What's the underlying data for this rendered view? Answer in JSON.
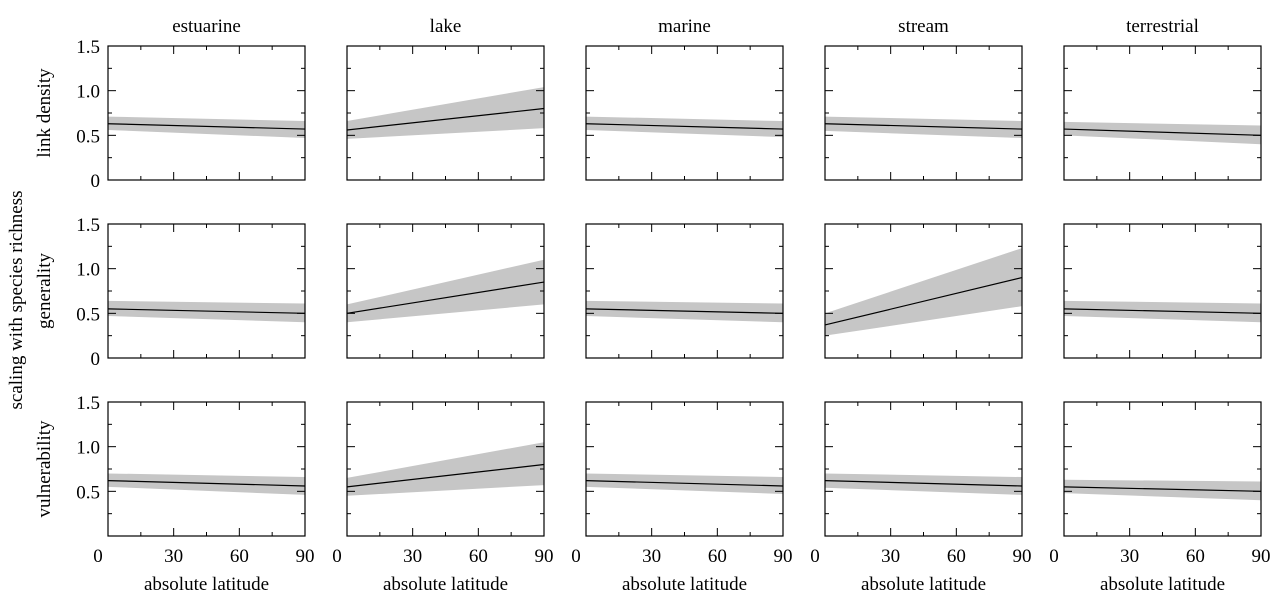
{
  "chart_data": {
    "type": "line",
    "y_supertitle": "scaling with species richness",
    "columns": [
      "estuarine",
      "lake",
      "marine",
      "stream",
      "terrestrial"
    ],
    "rows": [
      "link density",
      "generality",
      "vulnerability"
    ],
    "xlabel": "absolute latitude",
    "xlim": [
      0,
      90
    ],
    "xticks": [
      0,
      30,
      60,
      90
    ],
    "xtick_labels": [
      "0",
      "30",
      "60",
      "90"
    ],
    "ylim": [
      0,
      1.5
    ],
    "yticks": [
      0,
      0.5,
      1.0,
      1.5
    ],
    "ytick_labels": [
      "0",
      "0.5",
      "1.0",
      "1.5"
    ],
    "panels": [
      {
        "row": "link density",
        "column": "estuarine",
        "line": [
          [
            0,
            0.63
          ],
          [
            90,
            0.57
          ]
        ],
        "ci_lower": [
          [
            0,
            0.56
          ],
          [
            90,
            0.47
          ]
        ],
        "ci_upper": [
          [
            0,
            0.71
          ],
          [
            90,
            0.66
          ]
        ]
      },
      {
        "row": "link density",
        "column": "lake",
        "line": [
          [
            0,
            0.56
          ],
          [
            90,
            0.8
          ]
        ],
        "ci_lower": [
          [
            0,
            0.46
          ],
          [
            90,
            0.58
          ]
        ],
        "ci_upper": [
          [
            0,
            0.66
          ],
          [
            90,
            1.04
          ]
        ]
      },
      {
        "row": "link density",
        "column": "marine",
        "line": [
          [
            0,
            0.63
          ],
          [
            90,
            0.57
          ]
        ],
        "ci_lower": [
          [
            0,
            0.56
          ],
          [
            90,
            0.48
          ]
        ],
        "ci_upper": [
          [
            0,
            0.71
          ],
          [
            90,
            0.66
          ]
        ]
      },
      {
        "row": "link density",
        "column": "stream",
        "line": [
          [
            0,
            0.63
          ],
          [
            90,
            0.57
          ]
        ],
        "ci_lower": [
          [
            0,
            0.55
          ],
          [
            90,
            0.47
          ]
        ],
        "ci_upper": [
          [
            0,
            0.71
          ],
          [
            90,
            0.66
          ]
        ]
      },
      {
        "row": "link density",
        "column": "terrestrial",
        "line": [
          [
            0,
            0.57
          ],
          [
            90,
            0.5
          ]
        ],
        "ci_lower": [
          [
            0,
            0.5
          ],
          [
            90,
            0.4
          ]
        ],
        "ci_upper": [
          [
            0,
            0.65
          ],
          [
            90,
            0.61
          ]
        ]
      },
      {
        "row": "generality",
        "column": "estuarine",
        "line": [
          [
            0,
            0.55
          ],
          [
            90,
            0.5
          ]
        ],
        "ci_lower": [
          [
            0,
            0.47
          ],
          [
            90,
            0.4
          ]
        ],
        "ci_upper": [
          [
            0,
            0.64
          ],
          [
            90,
            0.61
          ]
        ]
      },
      {
        "row": "generality",
        "column": "lake",
        "line": [
          [
            0,
            0.5
          ],
          [
            90,
            0.85
          ]
        ],
        "ci_lower": [
          [
            0,
            0.4
          ],
          [
            90,
            0.6
          ]
        ],
        "ci_upper": [
          [
            0,
            0.6
          ],
          [
            90,
            1.1
          ]
        ]
      },
      {
        "row": "generality",
        "column": "marine",
        "line": [
          [
            0,
            0.55
          ],
          [
            90,
            0.5
          ]
        ],
        "ci_lower": [
          [
            0,
            0.47
          ],
          [
            90,
            0.4
          ]
        ],
        "ci_upper": [
          [
            0,
            0.64
          ],
          [
            90,
            0.61
          ]
        ]
      },
      {
        "row": "generality",
        "column": "stream",
        "line": [
          [
            0,
            0.37
          ],
          [
            90,
            0.9
          ]
        ],
        "ci_lower": [
          [
            0,
            0.25
          ],
          [
            90,
            0.58
          ]
        ],
        "ci_upper": [
          [
            0,
            0.5
          ],
          [
            90,
            1.23
          ]
        ]
      },
      {
        "row": "generality",
        "column": "terrestrial",
        "line": [
          [
            0,
            0.55
          ],
          [
            90,
            0.5
          ]
        ],
        "ci_lower": [
          [
            0,
            0.47
          ],
          [
            90,
            0.4
          ]
        ],
        "ci_upper": [
          [
            0,
            0.64
          ],
          [
            90,
            0.61
          ]
        ]
      },
      {
        "row": "vulnerability",
        "column": "estuarine",
        "line": [
          [
            0,
            0.62
          ],
          [
            90,
            0.56
          ]
        ],
        "ci_lower": [
          [
            0,
            0.55
          ],
          [
            90,
            0.46
          ]
        ],
        "ci_upper": [
          [
            0,
            0.7
          ],
          [
            90,
            0.66
          ]
        ]
      },
      {
        "row": "vulnerability",
        "column": "lake",
        "line": [
          [
            0,
            0.55
          ],
          [
            90,
            0.8
          ]
        ],
        "ci_lower": [
          [
            0,
            0.45
          ],
          [
            90,
            0.57
          ]
        ],
        "ci_upper": [
          [
            0,
            0.65
          ],
          [
            90,
            1.05
          ]
        ]
      },
      {
        "row": "vulnerability",
        "column": "marine",
        "line": [
          [
            0,
            0.62
          ],
          [
            90,
            0.56
          ]
        ],
        "ci_lower": [
          [
            0,
            0.55
          ],
          [
            90,
            0.47
          ]
        ],
        "ci_upper": [
          [
            0,
            0.7
          ],
          [
            90,
            0.66
          ]
        ]
      },
      {
        "row": "vulnerability",
        "column": "stream",
        "line": [
          [
            0,
            0.62
          ],
          [
            90,
            0.56
          ]
        ],
        "ci_lower": [
          [
            0,
            0.54
          ],
          [
            90,
            0.46
          ]
        ],
        "ci_upper": [
          [
            0,
            0.7
          ],
          [
            90,
            0.66
          ]
        ]
      },
      {
        "row": "vulnerability",
        "column": "terrestrial",
        "line": [
          [
            0,
            0.55
          ],
          [
            90,
            0.5
          ]
        ],
        "ci_lower": [
          [
            0,
            0.48
          ],
          [
            90,
            0.4
          ]
        ],
        "ci_upper": [
          [
            0,
            0.63
          ],
          [
            90,
            0.61
          ]
        ]
      }
    ],
    "colors": {
      "band": "#c6c6c6",
      "line": "#000000",
      "frame": "#000000"
    }
  }
}
